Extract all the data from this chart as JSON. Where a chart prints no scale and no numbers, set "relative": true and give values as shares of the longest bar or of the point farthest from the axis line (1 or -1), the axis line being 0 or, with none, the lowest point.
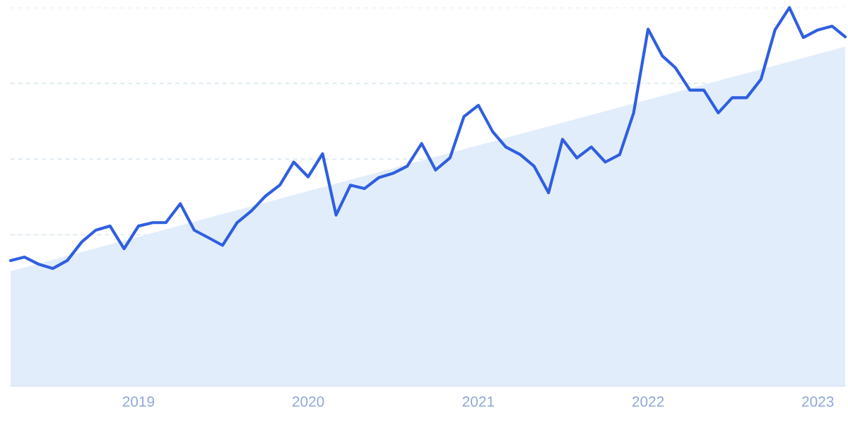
{
  "chart_data": {
    "type": "line",
    "relative": true,
    "grid": "y",
    "xlim": [
      "2018-04",
      "2023-03"
    ],
    "xticks": [
      {
        "value": "2019-01",
        "label": "2019"
      },
      {
        "value": "2020-01",
        "label": "2020"
      },
      {
        "value": "2021-01",
        "label": "2021"
      },
      {
        "value": "2022-01",
        "label": "2022"
      },
      {
        "value": "2023-01",
        "label": "2023"
      }
    ],
    "series": [
      {
        "type": "area",
        "color": "#e2edfb",
        "x": [
          "2018-04",
          "2023-03"
        ],
        "values": [
          0.304,
          0.897
        ]
      },
      {
        "color": "#2f5fe0",
        "x": [
          "2018-04",
          "2018-05",
          "2018-06",
          "2018-07",
          "2018-08",
          "2018-09",
          "2018-10",
          "2018-11",
          "2018-12",
          "2019-01",
          "2019-02",
          "2019-03",
          "2019-04",
          "2019-05",
          "2019-06",
          "2019-07",
          "2019-08",
          "2019-09",
          "2019-10",
          "2019-11",
          "2019-12",
          "2020-01",
          "2020-02",
          "2020-03",
          "2020-04",
          "2020-05",
          "2020-06",
          "2020-07",
          "2020-08",
          "2020-09",
          "2020-10",
          "2020-11",
          "2020-12",
          "2021-01",
          "2021-02",
          "2021-03",
          "2021-04",
          "2021-05",
          "2021-06",
          "2021-07",
          "2021-08",
          "2021-09",
          "2021-10",
          "2021-11",
          "2021-12",
          "2022-01",
          "2022-02",
          "2022-03",
          "2022-04",
          "2022-05",
          "2022-06",
          "2022-07",
          "2022-08",
          "2022-09",
          "2022-10",
          "2022-11",
          "2022-12",
          "2023-01",
          "2023-02",
          "2023-03"
        ],
        "values": [
          0.332,
          0.341,
          0.322,
          0.311,
          0.332,
          0.381,
          0.412,
          0.423,
          0.363,
          0.423,
          0.432,
          0.432,
          0.482,
          0.412,
          0.392,
          0.372,
          0.432,
          0.463,
          0.502,
          0.531,
          0.592,
          0.553,
          0.614,
          0.452,
          0.531,
          0.522,
          0.551,
          0.562,
          0.581,
          0.641,
          0.571,
          0.603,
          0.712,
          0.742,
          0.672,
          0.632,
          0.612,
          0.581,
          0.511,
          0.652,
          0.603,
          0.632,
          0.592,
          0.612,
          0.722,
          0.943,
          0.872,
          0.841,
          0.782,
          0.782,
          0.722,
          0.762,
          0.762,
          0.811,
          0.941,
          1,
          0.921,
          0.941,
          0.951,
          0.923
        ]
      }
    ]
  }
}
